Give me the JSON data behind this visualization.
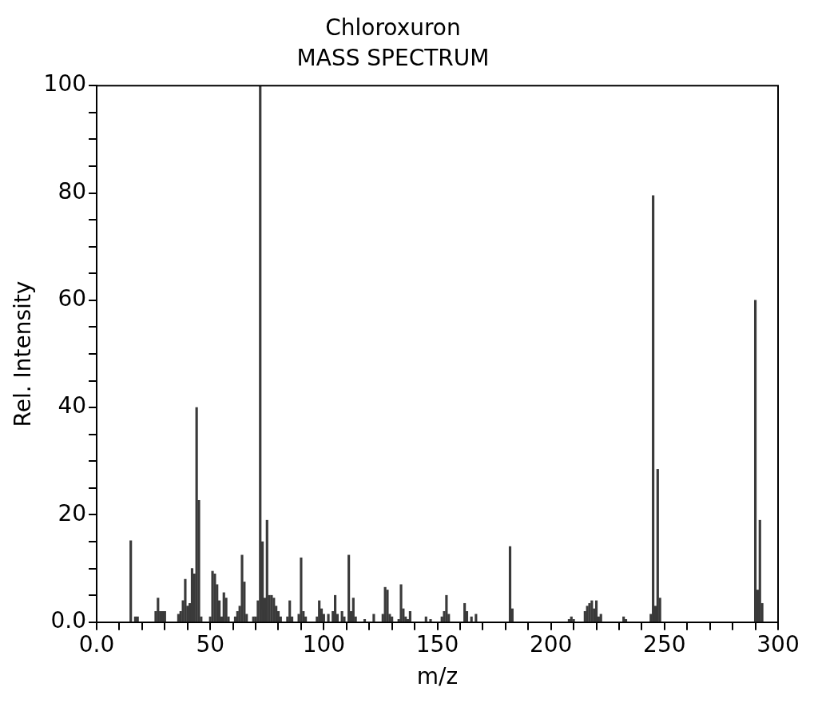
{
  "chart_data": {
    "type": "bar",
    "title": "Chloroxuron",
    "subtitle": "MASS SPECTRUM",
    "xlabel": "m/z",
    "ylabel": "Rel. Intensity",
    "x": [
      15,
      17,
      18,
      26,
      27,
      28,
      29,
      30,
      36,
      37,
      38,
      39,
      40,
      41,
      42,
      43,
      44,
      45,
      46,
      50,
      51,
      52,
      53,
      54,
      55,
      56,
      57,
      58,
      61,
      62,
      63,
      64,
      65,
      66,
      69,
      70,
      71,
      72,
      73,
      74,
      75,
      76,
      77,
      78,
      79,
      80,
      81,
      84,
      85,
      86,
      89,
      90,
      91,
      92,
      97,
      98,
      99,
      100,
      102,
      104,
      105,
      106,
      108,
      109,
      111,
      112,
      113,
      114,
      118,
      122,
      126,
      127,
      128,
      129,
      130,
      133,
      134,
      135,
      136,
      137,
      138,
      145,
      147,
      152,
      153,
      154,
      155,
      162,
      163,
      165,
      167,
      182,
      183,
      208,
      209,
      210,
      215,
      216,
      217,
      218,
      219,
      220,
      221,
      222,
      232,
      233,
      244,
      245,
      246,
      247,
      248,
      290,
      291,
      292,
      293
    ],
    "values": [
      15.2,
      1,
      1,
      2,
      4.5,
      2,
      2,
      2,
      1.5,
      2,
      4,
      8,
      3,
      3.5,
      10,
      9,
      40,
      22.7,
      1,
      1,
      9.5,
      9,
      7,
      4,
      1,
      5.5,
      4.5,
      1,
      1,
      2,
      3,
      12.5,
      7.5,
      1.5,
      1,
      1,
      4,
      100,
      15,
      4.5,
      19,
      5,
      5,
      4.5,
      3,
      2,
      1,
      1,
      4,
      1,
      1.5,
      12,
      2,
      1,
      1,
      4,
      2.5,
      1.5,
      1.5,
      2,
      5,
      1.5,
      2,
      1,
      12.5,
      2,
      4.5,
      1,
      0.5,
      1.5,
      1.5,
      6.5,
      6,
      1.5,
      1,
      0.5,
      7,
      2.5,
      1,
      0.5,
      2,
      1,
      0.5,
      1,
      2,
      5,
      1.5,
      3.5,
      2,
      1,
      1.5,
      14.1,
      2.5,
      0.5,
      1,
      0.5,
      2,
      3,
      3.5,
      4,
      2.5,
      4,
      1,
      1.5,
      1,
      0.5,
      1.5,
      79.5,
      3,
      28.5,
      4.5,
      60,
      6,
      19,
      3.5
    ],
    "color": "#3a3a3a",
    "xlim": [
      0,
      300
    ],
    "xticks": [
      {
        "value": 0,
        "label": "0.0"
      },
      {
        "value": 10,
        "label": null
      },
      {
        "value": 20,
        "label": null
      },
      {
        "value": 30,
        "label": null
      },
      {
        "value": 40,
        "label": null
      },
      50,
      {
        "value": 60,
        "label": null
      },
      {
        "value": 70,
        "label": null
      },
      {
        "value": 80,
        "label": null
      },
      {
        "value": 90,
        "label": null
      },
      100,
      {
        "value": 110,
        "label": null
      },
      {
        "value": 120,
        "label": null
      },
      {
        "value": 130,
        "label": null
      },
      {
        "value": 140,
        "label": null
      },
      150,
      {
        "value": 160,
        "label": null
      },
      {
        "value": 170,
        "label": null
      },
      {
        "value": 180,
        "label": null
      },
      {
        "value": 190,
        "label": null
      },
      200,
      {
        "value": 210,
        "label": null
      },
      {
        "value": 220,
        "label": null
      },
      {
        "value": 230,
        "label": null
      },
      {
        "value": 240,
        "label": null
      },
      250,
      {
        "value": 260,
        "label": null
      },
      {
        "value": 270,
        "label": null
      },
      {
        "value": 280,
        "label": null
      },
      {
        "value": 290,
        "label": null
      },
      300
    ],
    "ylim": [
      0,
      100
    ],
    "yticks": [
      {
        "value": 0,
        "label": "0.0"
      },
      {
        "value": 5,
        "label": null
      },
      {
        "value": 10,
        "label": null
      },
      {
        "value": 15,
        "label": null
      },
      20,
      {
        "value": 25,
        "label": null
      },
      {
        "value": 30,
        "label": null
      },
      {
        "value": 35,
        "label": null
      },
      40,
      {
        "value": 45,
        "label": null
      },
      {
        "value": 50,
        "label": null
      },
      {
        "value": 55,
        "label": null
      },
      60,
      {
        "value": 65,
        "label": null
      },
      {
        "value": 70,
        "label": null
      },
      {
        "value": 75,
        "label": null
      },
      80,
      {
        "value": 85,
        "label": null
      },
      {
        "value": 90,
        "label": null
      },
      {
        "value": 95,
        "label": null
      },
      100
    ],
    "grid": false,
    "legend": false
  }
}
